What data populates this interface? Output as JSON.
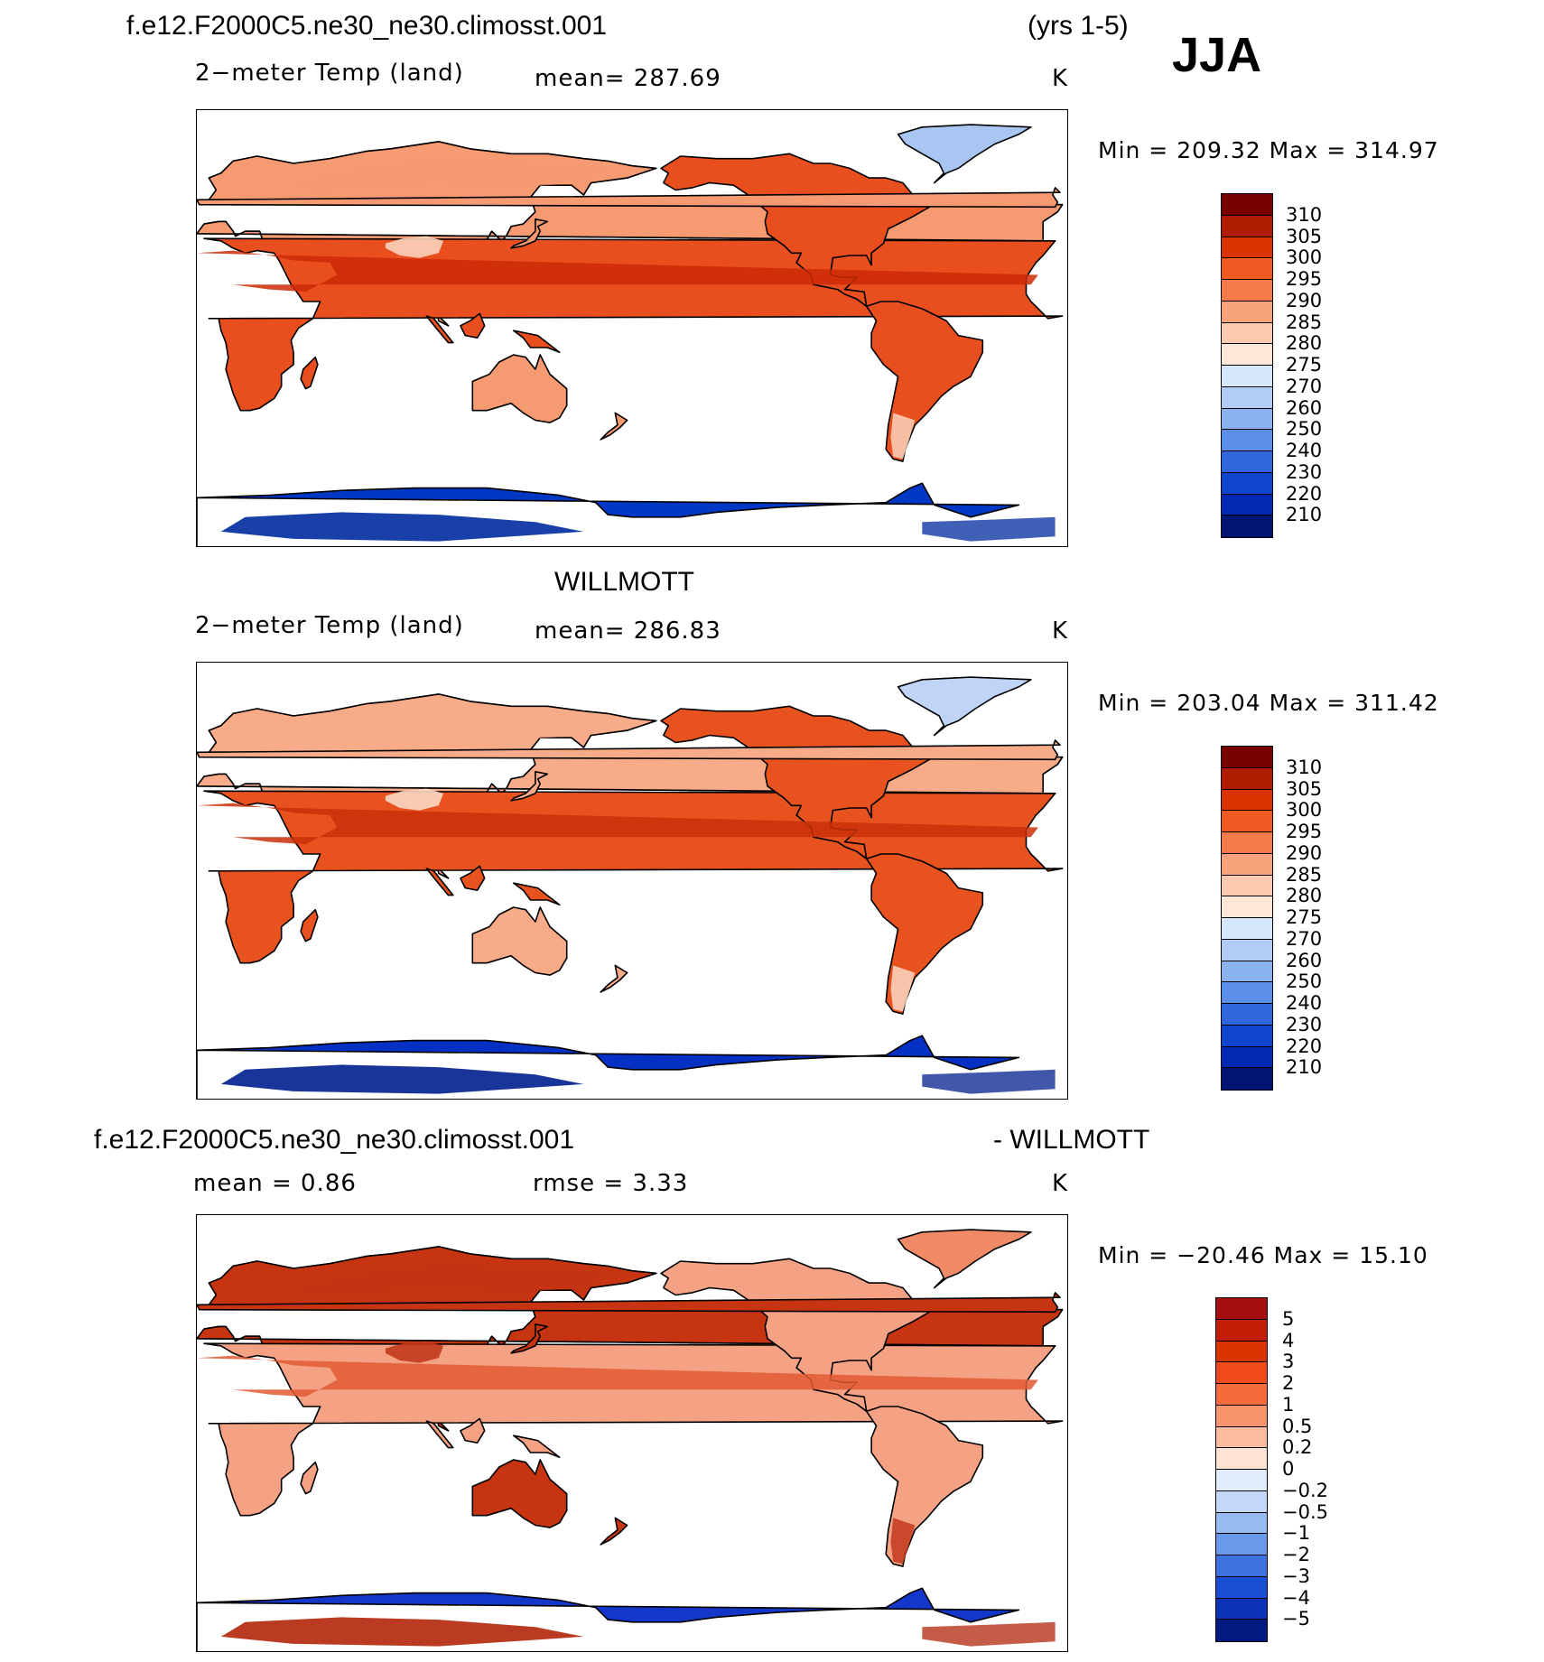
{
  "header": {
    "case_name": "f.e12.F2000C5.ne30_ne30.climosst.001",
    "years": "(yrs 1-5)",
    "season": "JJA"
  },
  "panels": [
    {
      "id": "model",
      "title": "",
      "variable": "2−meter Temp (land)",
      "stat1": "mean=  287.69",
      "stat2": "",
      "units": "K",
      "minmax": "Min  =  209.32  Max  =  314.97",
      "colorbar": {
        "labels": [
          "310",
          "305",
          "300",
          "295",
          "290",
          "285",
          "280",
          "275",
          "270",
          "260",
          "250",
          "240",
          "230",
          "220",
          "210"
        ],
        "colors": [
          "#7a0000",
          "#b01c00",
          "#d93300",
          "#ef5a22",
          "#f57c4a",
          "#f8a27c",
          "#fbc9ae",
          "#fde8d7",
          "#d6e6fb",
          "#b1cdf5",
          "#8ab2ef",
          "#5b8ee6",
          "#3066dc",
          "#1046ce",
          "#0028b3",
          "#001474"
        ]
      },
      "field": {
        "ocean": "#ffffff",
        "northern_land": "#f69a72",
        "tropics": "#e84e1e",
        "desert_hot": "#cc2a06",
        "plateau": "#fbd3bd",
        "greenland": "#a9c6f3",
        "antarctic": "#0038c6",
        "antarctic_deep": "#002a9e"
      }
    },
    {
      "id": "obs",
      "title": "WILLMOTT",
      "variable": "2−meter Temp (land)",
      "stat1": "mean=  286.83",
      "stat2": "",
      "units": "K",
      "minmax": "Min  =  203.04  Max  =  311.42",
      "colorbar": {
        "labels": [
          "310",
          "305",
          "300",
          "295",
          "290",
          "285",
          "280",
          "275",
          "270",
          "260",
          "250",
          "240",
          "230",
          "220",
          "210"
        ],
        "colors": [
          "#7a0000",
          "#b01c00",
          "#d93300",
          "#ef5a22",
          "#f57c4a",
          "#f8a27c",
          "#fbc9ae",
          "#fde8d7",
          "#d6e6fb",
          "#b1cdf5",
          "#8ab2ef",
          "#5b8ee6",
          "#3066dc",
          "#1046ce",
          "#0028b3",
          "#001474"
        ]
      },
      "field": {
        "ocean": "#ffffff",
        "northern_land": "#f8ab88",
        "tropics": "#e8521f",
        "desert_hot": "#c93009",
        "plateau": "#fbd8c5",
        "greenland": "#bfd4f6",
        "antarctic": "#0530c4",
        "antarctic_deep": "#001f8e"
      }
    },
    {
      "id": "diff",
      "title": "f.e12.F2000C5.ne30_ne30.climosst.001",
      "title_right": "- WILLMOTT",
      "variable": "",
      "stat1": "mean  =     0.86",
      "stat2": "rmse  =     3.33",
      "units": "K",
      "minmax": "Min  =  −20.46  Max  =     15.10",
      "colorbar": {
        "labels": [
          "5",
          "4",
          "3",
          "2",
          "1",
          "0.5",
          "0.2",
          "0",
          "−0.2",
          "−0.5",
          "−1",
          "−2",
          "−3",
          "−4",
          "−5"
        ],
        "colors": [
          "#a50f0f",
          "#c41d07",
          "#d93300",
          "#ef4a18",
          "#f56b3a",
          "#f8946c",
          "#fbbd9e",
          "#fde4d4",
          "#e0ecfb",
          "#c3d8f7",
          "#97bbf1",
          "#6a9aea",
          "#3e72df",
          "#1b4fd3",
          "#0a33b5",
          "#001a80"
        ]
      },
      "field": {
        "ocean": "#ffffff",
        "northern_land": "#c63412",
        "tropics": "#f4a184",
        "desert_hot": "#e05a34",
        "plateau": "#c23a1c",
        "greenland": "#f08a66",
        "antarctic": "#1436c9",
        "antarctic_deep": "#b2260a"
      }
    }
  ],
  "chart_data": [
    {
      "type": "heatmap",
      "title": "f.e12.F2000C5.ne30_ne30.climosst.001 (yrs 1-5) JJA",
      "subtitle": "2-meter Temp (land)",
      "units": "K",
      "mean": 287.69,
      "min": 209.32,
      "max": 314.97,
      "levels": [
        210,
        220,
        230,
        240,
        250,
        260,
        270,
        275,
        280,
        285,
        290,
        295,
        300,
        305,
        310
      ]
    },
    {
      "type": "heatmap",
      "title": "WILLMOTT",
      "subtitle": "2-meter Temp (land)",
      "units": "K",
      "mean": 286.83,
      "min": 203.04,
      "max": 311.42,
      "levels": [
        210,
        220,
        230,
        240,
        250,
        260,
        270,
        275,
        280,
        285,
        290,
        295,
        300,
        305,
        310
      ]
    },
    {
      "type": "heatmap",
      "title": "f.e12.F2000C5.ne30_ne30.climosst.001 - WILLMOTT",
      "units": "K",
      "mean": 0.86,
      "rmse": 3.33,
      "min": -20.46,
      "max": 15.1,
      "levels": [
        -5,
        -4,
        -3,
        -2,
        -1,
        -0.5,
        -0.2,
        0,
        0.2,
        0.5,
        1,
        2,
        3,
        4,
        5
      ]
    }
  ]
}
